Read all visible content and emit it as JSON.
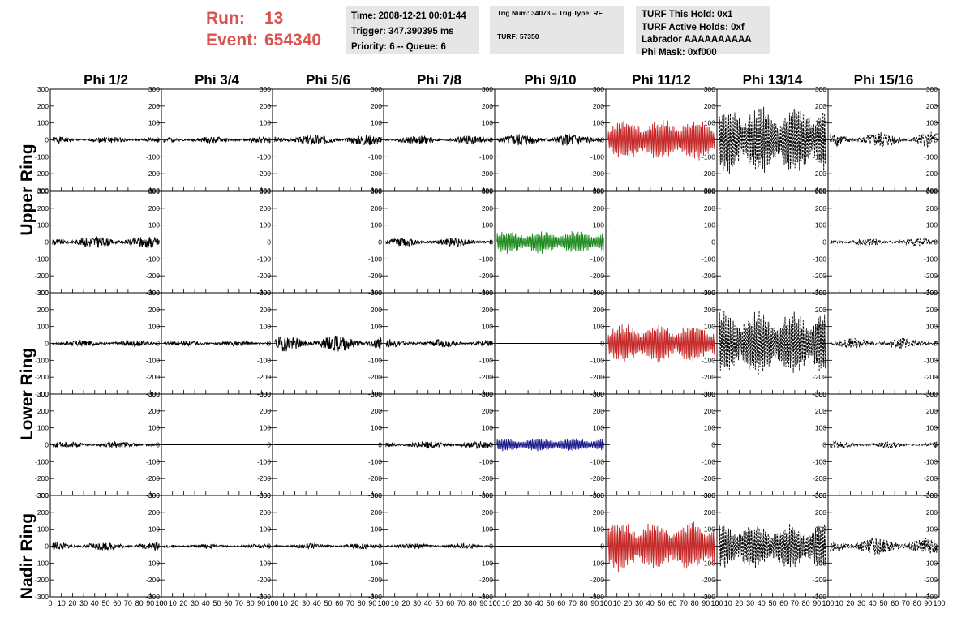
{
  "header": {
    "run_label": "Run:",
    "run_value": "13",
    "event_label": "Event:",
    "event_value": "654340",
    "time": "Time: 2008-12-21 00:01:44",
    "trigger": "Trigger: 347.390395 ms",
    "priority": "Priority: 6 -- Queue: 6",
    "trig_num": "Trig Num: 34073 -- Trig Type: RF",
    "turf": "TURF: 57350",
    "turf_hold": "TURF This Hold: 0x1",
    "turf_active": "TURF Active Holds: 0xf",
    "labrador": "Labrador AAAAAAAAAA",
    "phi_mask": "Phi Mask: 0xf000"
  },
  "ring_labels": [
    "Upper Ring",
    "Lower Ring",
    "Nadir Ring"
  ],
  "colors": {
    "black": "#000000",
    "red": "#c62828",
    "green": "#1e8a1e",
    "blue": "#1a1a8c"
  },
  "chart_data": {
    "type": "line",
    "title": "",
    "columns": [
      "Phi 1/2",
      "Phi 3/4",
      "Phi 5/6",
      "Phi 7/8",
      "Phi 9/10",
      "Phi 11/12",
      "Phi 13/14",
      "Phi 15/16"
    ],
    "ylim": [
      -300,
      300
    ],
    "yticks": [
      "300",
      "200",
      "100",
      "0",
      "-100",
      "-200",
      "-300"
    ],
    "xlim": [
      0,
      100
    ],
    "xticks": [
      "0",
      "10",
      "20",
      "30",
      "40",
      "50",
      "60",
      "70",
      "80",
      "90",
      "100"
    ],
    "grid": false,
    "panels": [
      [
        {
          "style": "noise",
          "amp": 12,
          "color": "black",
          "seed": 1
        },
        {
          "style": "noise",
          "amp": 12,
          "color": "black",
          "seed": 2
        },
        {
          "style": "noise",
          "amp": 20,
          "color": "black",
          "seed": 3
        },
        {
          "style": "noise",
          "amp": 16,
          "color": "black",
          "seed": 4
        },
        {
          "style": "noise",
          "amp": 24,
          "color": "black",
          "seed": 5
        },
        {
          "style": "burst",
          "amp": 130,
          "color": "red",
          "seed": 6
        },
        {
          "style": "burst",
          "amp": 210,
          "color": "black",
          "dashed": true,
          "seed": 7
        },
        {
          "style": "noise",
          "amp": 30,
          "color": "black",
          "dashed": true,
          "seed": 8
        }
      ],
      [
        {
          "style": "noise",
          "amp": 22,
          "color": "black",
          "seed": 9
        },
        {
          "style": "flat",
          "amp": 0,
          "color": "black",
          "seed": 10
        },
        {
          "style": "noise",
          "amp": 0,
          "color": "black",
          "seed": 11
        },
        {
          "style": "noise",
          "amp": 16,
          "color": "black",
          "seed": 12
        },
        {
          "style": "burst",
          "amp": 70,
          "color": "green",
          "seed": 13
        },
        {
          "style": "none",
          "amp": 0,
          "color": "black",
          "seed": 14
        },
        {
          "style": "none",
          "amp": 0,
          "color": "black",
          "seed": 15
        },
        {
          "style": "noise",
          "amp": 14,
          "color": "black",
          "dashed": true,
          "seed": 16
        }
      ],
      [
        {
          "style": "noise",
          "amp": 12,
          "color": "black",
          "seed": 17
        },
        {
          "style": "noise",
          "amp": 10,
          "color": "black",
          "seed": 18
        },
        {
          "style": "noise",
          "amp": 30,
          "color": "black",
          "seed": 19
        },
        {
          "style": "noise",
          "amp": 14,
          "color": "black",
          "seed": 20
        },
        {
          "style": "noise",
          "amp": 0,
          "color": "black",
          "seed": 21
        },
        {
          "style": "burst",
          "amp": 120,
          "color": "red",
          "seed": 22
        },
        {
          "style": "burst",
          "amp": 200,
          "color": "black",
          "dashed": true,
          "seed": 23
        },
        {
          "style": "noise",
          "amp": 20,
          "color": "black",
          "dashed": true,
          "seed": 24
        }
      ],
      [
        {
          "style": "noise",
          "amp": 12,
          "color": "black",
          "seed": 25
        },
        {
          "style": "flat",
          "amp": 0,
          "color": "black",
          "seed": 26
        },
        {
          "style": "noise",
          "amp": 0,
          "color": "black",
          "seed": 27
        },
        {
          "style": "noise",
          "amp": 14,
          "color": "black",
          "seed": 28
        },
        {
          "style": "burst",
          "amp": 40,
          "color": "blue",
          "seed": 29
        },
        {
          "style": "none",
          "amp": 0,
          "color": "black",
          "seed": 30
        },
        {
          "style": "none",
          "amp": 0,
          "color": "black",
          "seed": 31
        },
        {
          "style": "noise",
          "amp": 12,
          "color": "black",
          "dashed": true,
          "seed": 32
        }
      ],
      [
        {
          "style": "noise",
          "amp": 16,
          "color": "black",
          "seed": 33
        },
        {
          "style": "noise",
          "amp": 8,
          "color": "black",
          "seed": 34
        },
        {
          "style": "noise",
          "amp": 10,
          "color": "black",
          "seed": 35
        },
        {
          "style": "noise",
          "amp": 10,
          "color": "black",
          "seed": 36
        },
        {
          "style": "noise",
          "amp": 0,
          "color": "black",
          "seed": 37
        },
        {
          "style": "burst",
          "amp": 160,
          "color": "red",
          "seed": 38
        },
        {
          "style": "burst",
          "amp": 140,
          "color": "black",
          "dashed": true,
          "seed": 39
        },
        {
          "style": "noise",
          "amp": 32,
          "color": "black",
          "dashed": true,
          "seed": 40
        }
      ]
    ]
  }
}
